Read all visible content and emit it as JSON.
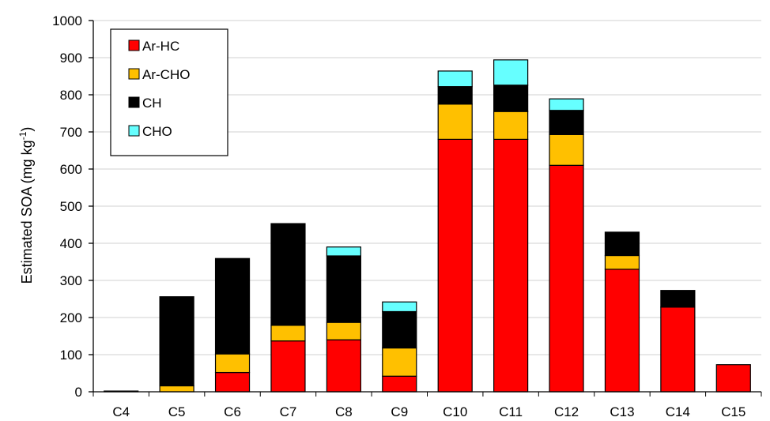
{
  "chart_data": {
    "type": "bar",
    "stacked": true,
    "title": "",
    "xlabel": "",
    "ylabel": "Estimated SOA (mg kg⁻¹)",
    "ylim": [
      0,
      1000
    ],
    "yticks": [
      0,
      100,
      200,
      300,
      400,
      500,
      600,
      700,
      800,
      900,
      1000
    ],
    "grid": true,
    "legend_position": "top-left",
    "categories": [
      "C4",
      "C5",
      "C6",
      "C7",
      "C8",
      "C9",
      "C10",
      "C11",
      "C12",
      "C13",
      "C14",
      "C15"
    ],
    "series": [
      {
        "name": "Ar-HC",
        "color": "#ff0000",
        "values": [
          0,
          0,
          52,
          137,
          140,
          42,
          680,
          680,
          610,
          330,
          228,
          73
        ]
      },
      {
        "name": "Ar-CHO",
        "color": "#ffc000",
        "values": [
          0,
          16,
          50,
          42,
          47,
          76,
          95,
          75,
          83,
          37,
          0,
          0
        ]
      },
      {
        "name": "CH",
        "color": "#000000",
        "values": [
          2,
          240,
          257,
          274,
          179,
          98,
          47,
          71,
          65,
          63,
          45,
          0
        ]
      },
      {
        "name": "CHO",
        "color": "#66ffff",
        "values": [
          0,
          0,
          0,
          0,
          24,
          26,
          42,
          68,
          31,
          0,
          0,
          0
        ]
      }
    ]
  }
}
